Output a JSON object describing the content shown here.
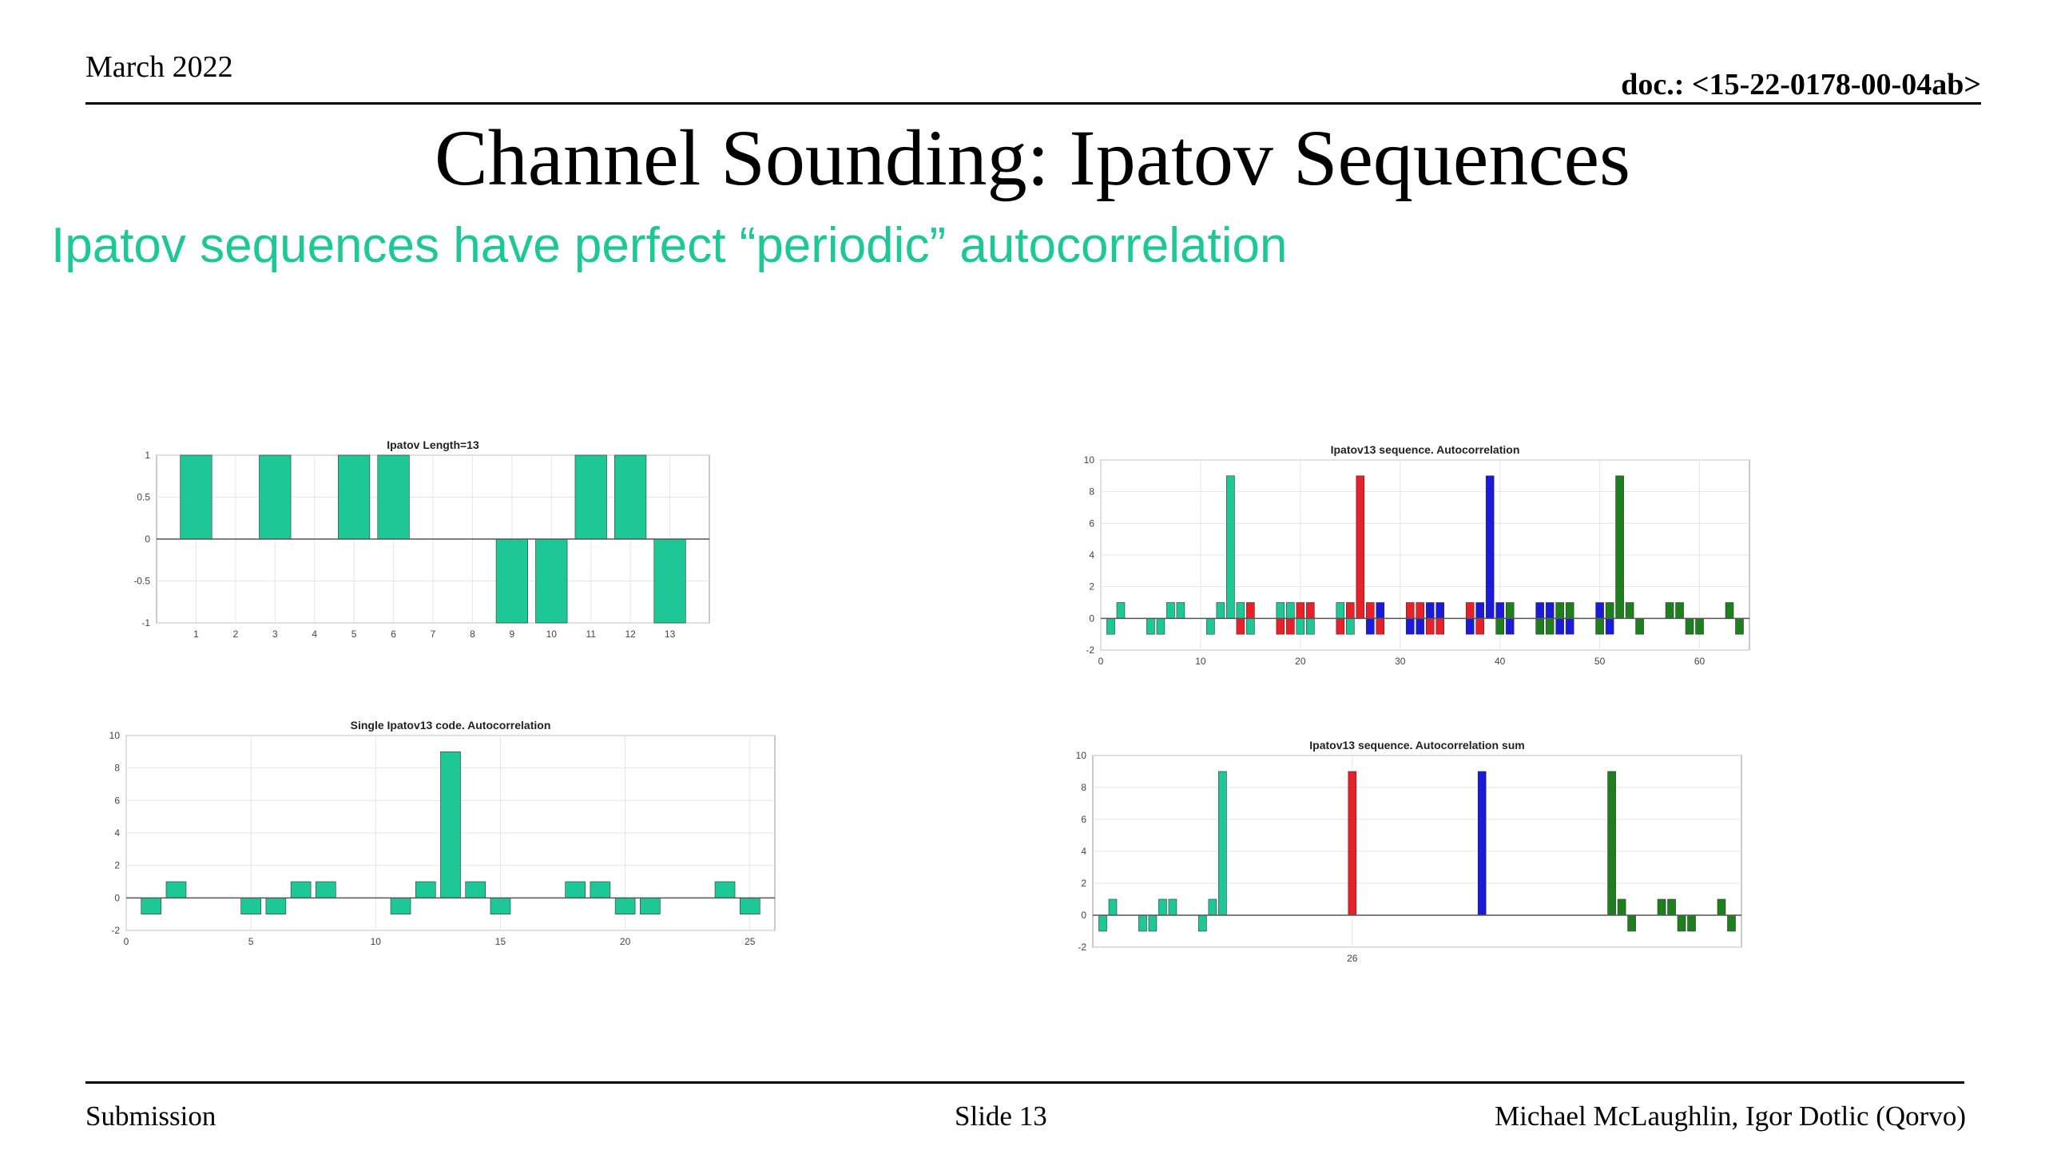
{
  "header": {
    "date": "March 2022",
    "doc": "doc.: <15-22-0178-00-04ab>"
  },
  "title": "Channel Sounding: Ipatov Sequences",
  "subtitle": "Ipatov sequences have perfect “periodic” autocorrelation",
  "footer": {
    "left": "Submission",
    "center": "Slide 13",
    "right": "Michael McLaughlin, Igor Dotlic (Qorvo)"
  },
  "colors": {
    "teal": "#1dc896",
    "red": "#e8202a",
    "blue": "#1a1ad8",
    "green": "#1e7f1e",
    "accent": "#1dc896"
  },
  "chart_data": [
    {
      "id": "c1",
      "type": "bar",
      "title": "Ipatov Length=13",
      "xlim": [
        0,
        14
      ],
      "ylim": [
        -1,
        1
      ],
      "xticks": [
        1,
        2,
        3,
        4,
        5,
        6,
        7,
        8,
        9,
        10,
        11,
        12,
        13
      ],
      "yticks": [
        1,
        0.5,
        0,
        -0.5,
        -1
      ],
      "bar_width": 0.8,
      "series": [
        {
          "color": "teal",
          "x": [
            1,
            2,
            3,
            4,
            5,
            6,
            7,
            8,
            9,
            10,
            11,
            12,
            13
          ],
          "values": [
            1,
            0,
            1,
            0,
            1,
            1,
            0,
            0,
            -1,
            -1,
            1,
            1,
            -1
          ]
        }
      ]
    },
    {
      "id": "c2",
      "type": "bar",
      "title": "Single Ipatov13 code. Autocorrelation",
      "xlim": [
        0,
        26
      ],
      "ylim": [
        -2,
        10
      ],
      "xticks": [
        0,
        5,
        10,
        15,
        20,
        25
      ],
      "yticks": [
        10,
        8,
        6,
        4,
        2,
        0,
        -2
      ],
      "bar_width": 0.8,
      "series": [
        {
          "color": "teal",
          "x": [
            1,
            2,
            3,
            4,
            5,
            6,
            7,
            8,
            9,
            10,
            11,
            12,
            13,
            14,
            15,
            16,
            17,
            18,
            19,
            20,
            21,
            22,
            23,
            24,
            25
          ],
          "values": [
            -1,
            1,
            0,
            0,
            -1,
            -1,
            1,
            1,
            0,
            0,
            -1,
            1,
            9,
            1,
            -1,
            0,
            0,
            1,
            1,
            -1,
            -1,
            0,
            0,
            1,
            -1
          ]
        }
      ]
    },
    {
      "id": "c3",
      "type": "bar",
      "title": "Ipatov13 sequence. Autocorrelation",
      "xlim": [
        0,
        65
      ],
      "ylim": [
        -2,
        10
      ],
      "xticks": [
        0,
        10,
        20,
        30,
        40,
        50,
        60
      ],
      "yticks": [
        10,
        8,
        6,
        4,
        2,
        0,
        -2
      ],
      "bar_width": 0.8,
      "series": [
        {
          "color": "teal",
          "x": [
            1,
            2,
            3,
            4,
            5,
            6,
            7,
            8,
            9,
            10,
            11,
            12,
            13,
            14,
            15,
            16,
            17,
            18,
            19,
            20,
            21,
            22,
            23,
            24,
            25
          ],
          "values": [
            -1,
            1,
            0,
            0,
            -1,
            -1,
            1,
            1,
            0,
            0,
            -1,
            1,
            9,
            1,
            -1,
            0,
            0,
            1,
            1,
            -1,
            -1,
            0,
            0,
            1,
            -1
          ]
        },
        {
          "color": "red",
          "x": [
            14,
            15,
            16,
            17,
            18,
            19,
            20,
            21,
            22,
            23,
            24,
            25,
            26,
            27,
            28,
            29,
            30,
            31,
            32,
            33,
            34,
            35,
            36,
            37,
            38
          ],
          "values": [
            -1,
            1,
            0,
            0,
            -1,
            -1,
            1,
            1,
            0,
            0,
            -1,
            1,
            9,
            1,
            -1,
            0,
            0,
            1,
            1,
            -1,
            -1,
            0,
            0,
            1,
            -1
          ]
        },
        {
          "color": "blue",
          "x": [
            27,
            28,
            29,
            30,
            31,
            32,
            33,
            34,
            35,
            36,
            37,
            38,
            39,
            40,
            41,
            42,
            43,
            44,
            45,
            46,
            47,
            48,
            49,
            50,
            51
          ],
          "values": [
            -1,
            1,
            0,
            0,
            -1,
            -1,
            1,
            1,
            0,
            0,
            -1,
            1,
            9,
            1,
            -1,
            0,
            0,
            1,
            1,
            -1,
            -1,
            0,
            0,
            1,
            -1
          ]
        },
        {
          "color": "green",
          "x": [
            40,
            41,
            42,
            43,
            44,
            45,
            46,
            47,
            48,
            49,
            50,
            51,
            52,
            53,
            54,
            55,
            56,
            57,
            58,
            59,
            60,
            61,
            62,
            63,
            64
          ],
          "values": [
            -1,
            1,
            0,
            0,
            -1,
            -1,
            1,
            1,
            0,
            0,
            -1,
            1,
            9,
            1,
            -1,
            0,
            0,
            1,
            1,
            -1,
            -1,
            0,
            0,
            1,
            -1
          ]
        }
      ]
    },
    {
      "id": "c4",
      "type": "bar",
      "title": "Ipatov13 sequence. Autocorrelation sum",
      "xlim": [
        0,
        65
      ],
      "ylim": [
        -2,
        10
      ],
      "xticks": [
        26
      ],
      "yticks": [
        10,
        8,
        6,
        4,
        2,
        0,
        -2
      ],
      "bar_width": 0.8,
      "series": [
        {
          "color": "teal",
          "x": [
            1,
            2,
            3,
            4,
            5,
            6,
            7,
            8,
            9,
            10,
            11,
            12,
            13
          ],
          "values": [
            -1,
            1,
            0,
            0,
            -1,
            -1,
            1,
            1,
            0,
            0,
            -1,
            1,
            9
          ]
        },
        {
          "color": "red",
          "x": [
            26
          ],
          "values": [
            9
          ]
        },
        {
          "color": "blue",
          "x": [
            39
          ],
          "values": [
            9
          ]
        },
        {
          "color": "green",
          "x": [
            52,
            53,
            54,
            55,
            56,
            57,
            58,
            59,
            60,
            61,
            62,
            63,
            64
          ],
          "values": [
            9,
            1,
            -1,
            0,
            0,
            1,
            1,
            -1,
            -1,
            0,
            0,
            1,
            -1
          ]
        }
      ]
    }
  ]
}
